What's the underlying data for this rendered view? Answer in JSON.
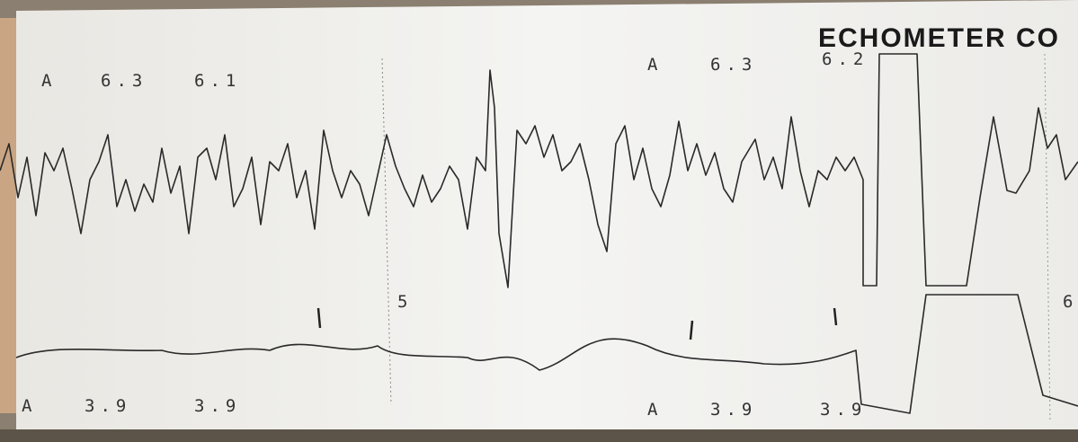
{
  "header": {
    "brand": "ECHOMETER CO"
  },
  "upper_labels": [
    {
      "channel": "A",
      "values": [
        "6.3",
        "6.1"
      ]
    },
    {
      "channel": "A",
      "values": [
        "6.3",
        "6.2"
      ]
    }
  ],
  "lower_labels": [
    {
      "channel": "A",
      "values": [
        "3.9",
        "3.9"
      ]
    },
    {
      "channel": "A",
      "values": [
        "3.9",
        "3.9"
      ]
    }
  ],
  "markers": [
    "5",
    "6"
  ]
}
